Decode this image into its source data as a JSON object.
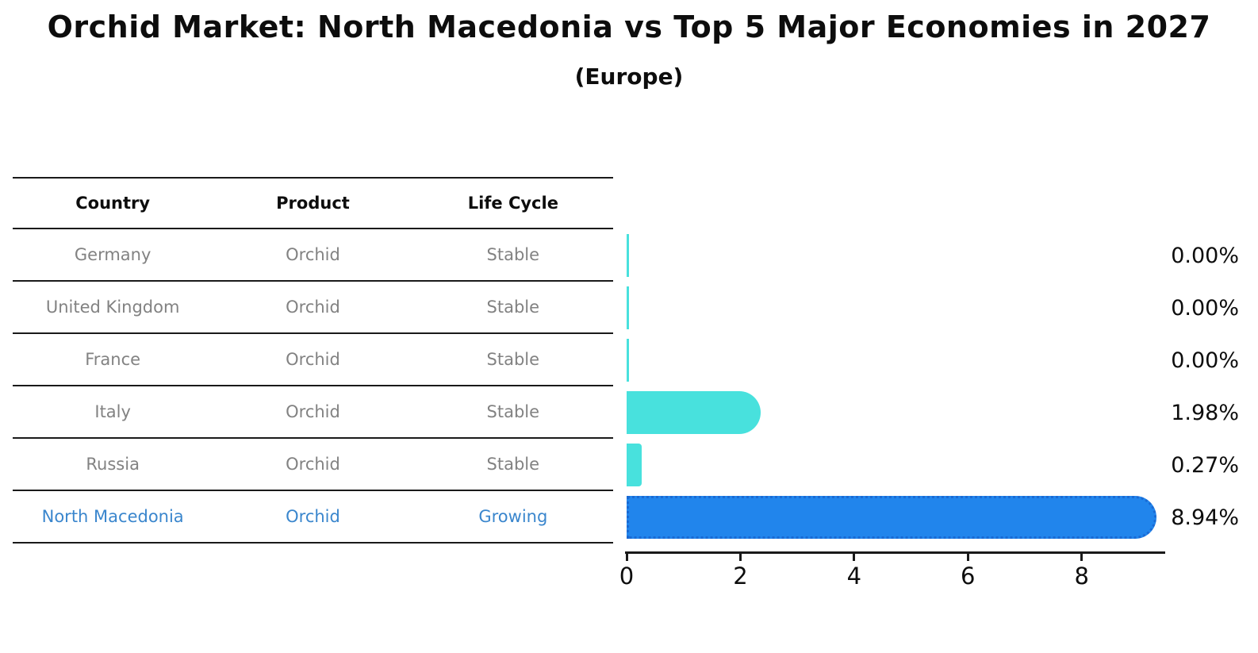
{
  "title": "Orchid Market: North Macedonia vs Top 5 Major Economies in 2027",
  "subtitle": "(Europe)",
  "table": {
    "headers": [
      "Country",
      "Product",
      "Life Cycle"
    ],
    "rows": [
      {
        "country": "Germany",
        "product": "Orchid",
        "life_cycle": "Stable",
        "highlighted": false
      },
      {
        "country": "United Kingdom",
        "product": "Orchid",
        "life_cycle": "Stable",
        "highlighted": false
      },
      {
        "country": "France",
        "product": "Orchid",
        "life_cycle": "Stable",
        "highlighted": false
      },
      {
        "country": "Italy",
        "product": "Orchid",
        "life_cycle": "Stable",
        "highlighted": false
      },
      {
        "country": "Russia",
        "product": "Orchid",
        "life_cycle": "Stable",
        "highlighted": false
      },
      {
        "country": "North Macedonia",
        "product": "Orchid",
        "life_cycle": "Growing",
        "highlighted": true
      }
    ]
  },
  "chart_data": {
    "type": "bar",
    "orientation": "horizontal",
    "title": "Orchid Market: North Macedonia vs Top 5 Major Economies in 2027",
    "subtitle": "(Europe)",
    "categories": [
      "Germany",
      "United Kingdom",
      "France",
      "Italy",
      "Russia",
      "North Macedonia"
    ],
    "values": [
      0.0,
      0.0,
      0.0,
      1.98,
      0.27,
      8.94
    ],
    "value_labels": [
      "0.00%",
      "0.00%",
      "0.00%",
      "1.98%",
      "0.27%",
      "8.94%"
    ],
    "unit": "%",
    "xlim": [
      0,
      9.44
    ],
    "xticks": [
      0,
      2,
      4,
      6,
      8
    ],
    "grid": false,
    "legend": false,
    "highlight_index": 5,
    "bar_color_default": "#48E1DD",
    "bar_color_highlight": "#2185EC",
    "highlight_border_color": "#1A6AD4"
  },
  "colors": {
    "table_text": "#828282",
    "highlight_text": "#3A86CD",
    "heading_text": "#0d0d0d",
    "axis_color": "#1a1a1a",
    "background": "#ffffff"
  }
}
